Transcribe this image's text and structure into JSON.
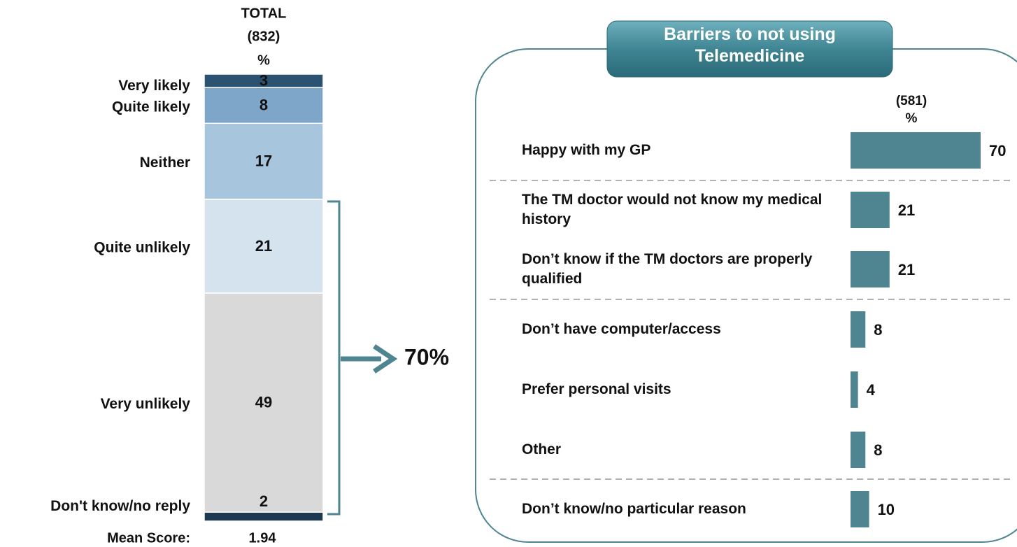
{
  "chart_data": [
    {
      "type": "stacked-bar",
      "header": [
        "TOTAL",
        "(832)",
        "%"
      ],
      "categories": [
        "Very likely",
        "Quite likely",
        "Neither",
        "Quite unlikely",
        "Very unlikely",
        "Don't know/no reply"
      ],
      "values": [
        3,
        8,
        17,
        21,
        49,
        2
      ],
      "colors": [
        "#2b5270",
        "#7ea6c8",
        "#a8c5de",
        "#d5e3ef",
        "#d9d9d9",
        "#1d3a52"
      ],
      "label_colors": [
        "#ffffff",
        "#ffffff",
        "#111111",
        "#3b6b8f",
        "#3b6b8f",
        "#111111"
      ],
      "mean_label": "Mean Score:",
      "mean_value": "1.94",
      "annotation": "70%"
    },
    {
      "type": "hbar",
      "title": "Barriers to not using Telemedicine",
      "header": [
        "(581)",
        "%"
      ],
      "categories": [
        "Happy with my GP",
        "The TM doctor would not know my medical history",
        "Don’t know if the TM doctors are properly qualified",
        "Don’t have computer/access",
        "Prefer personal visits",
        "Other",
        "Don’t know/no particular reason"
      ],
      "values": [
        70,
        21,
        21,
        8,
        4,
        8,
        10
      ],
      "color": "#4e8590"
    }
  ]
}
